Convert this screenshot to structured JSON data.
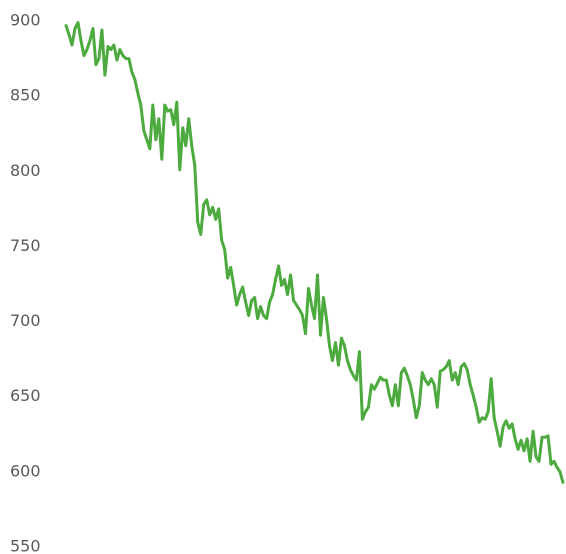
{
  "chart_data": {
    "type": "line",
    "color": "#4caa3e",
    "grid": false,
    "ylim": [
      550,
      900
    ],
    "yticks": [
      550,
      600,
      650,
      700,
      750,
      800,
      850,
      900
    ],
    "values": [
      897,
      891,
      884,
      895,
      899,
      887,
      877,
      881,
      887,
      895,
      871,
      875,
      894,
      864,
      883,
      881,
      884,
      874,
      881,
      877,
      875,
      875,
      866,
      861,
      852,
      844,
      827,
      821,
      815,
      844,
      821,
      835,
      808,
      844,
      840,
      841,
      831,
      846,
      801,
      829,
      817,
      835,
      817,
      804,
      766,
      758,
      778,
      781,
      771,
      776,
      768,
      775,
      754,
      748,
      729,
      736,
      724,
      711,
      718,
      723,
      713,
      704,
      714,
      716,
      702,
      710,
      704,
      702,
      713,
      718,
      728,
      737,
      724,
      728,
      718,
      731,
      714,
      711,
      708,
      704,
      692,
      722,
      711,
      702,
      731,
      691,
      716,
      702,
      684,
      674,
      686,
      671,
      689,
      684,
      674,
      668,
      664,
      661,
      680,
      635,
      640,
      643,
      658,
      655,
      659,
      663,
      661,
      661,
      651,
      644,
      658,
      644,
      666,
      669,
      664,
      658,
      648,
      636,
      644,
      666,
      661,
      658,
      662,
      658,
      643,
      667,
      668,
      670,
      674,
      661,
      666,
      658,
      670,
      672,
      668,
      658,
      651,
      643,
      633,
      636,
      635,
      640,
      662,
      636,
      627,
      617,
      630,
      634,
      629,
      632,
      622,
      615,
      621,
      614,
      622,
      607,
      627,
      610,
      607,
      623,
      623,
      624,
      605,
      607,
      603,
      600,
      593
    ]
  }
}
